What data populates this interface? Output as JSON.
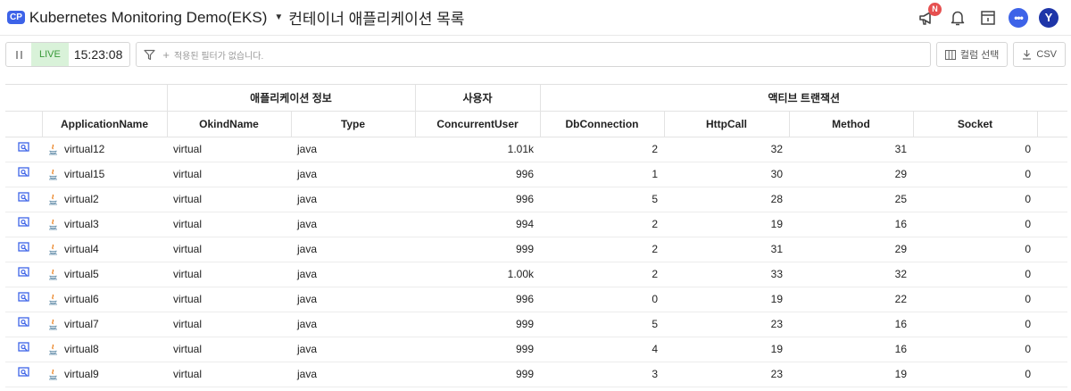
{
  "header": {
    "badge": "CP",
    "project": "Kubernetes Monitoring Demo(EKS)",
    "title": "컨테이너 애플리케이션 목록",
    "notification_badge": "N",
    "avatar_letter": "Y",
    "chat_glyph": "•••"
  },
  "toolbar": {
    "live_label": "LIVE",
    "time": "15:23:08",
    "filter_placeholder": "적용된 필터가 없습니다.",
    "column_select_label": "컬럼 선택",
    "csv_label": "CSV"
  },
  "table": {
    "groups": [
      "애플리케이션 정보",
      "사용자",
      "액티브 트랜잭션"
    ],
    "columns": [
      "ApplicationName",
      "OkindName",
      "Type",
      "ConcurrentUser",
      "DbConnection",
      "HttpCall",
      "Method",
      "Socket"
    ],
    "rows": [
      [
        "virtual12",
        "virtual",
        "java",
        "1.01k",
        "2",
        "32",
        "31",
        "0"
      ],
      [
        "virtual15",
        "virtual",
        "java",
        "996",
        "1",
        "30",
        "29",
        "0"
      ],
      [
        "virtual2",
        "virtual",
        "java",
        "996",
        "5",
        "28",
        "25",
        "0"
      ],
      [
        "virtual3",
        "virtual",
        "java",
        "994",
        "2",
        "19",
        "16",
        "0"
      ],
      [
        "virtual4",
        "virtual",
        "java",
        "999",
        "2",
        "31",
        "29",
        "0"
      ],
      [
        "virtual5",
        "virtual",
        "java",
        "1.00k",
        "2",
        "33",
        "32",
        "0"
      ],
      [
        "virtual6",
        "virtual",
        "java",
        "996",
        "0",
        "19",
        "22",
        "0"
      ],
      [
        "virtual7",
        "virtual",
        "java",
        "999",
        "5",
        "23",
        "16",
        "0"
      ],
      [
        "virtual8",
        "virtual",
        "java",
        "999",
        "4",
        "19",
        "16",
        "0"
      ],
      [
        "virtual9",
        "virtual",
        "java",
        "999",
        "3",
        "23",
        "19",
        "0"
      ]
    ]
  },
  "colors": {
    "accent": "#3d63e8",
    "live_bg": "#d9f2d9",
    "live_text": "#3a9a3a",
    "notification": "#e65050",
    "avatar": "#1e35a8"
  },
  "icons": [
    "megaphone-icon",
    "bell-icon",
    "panel-icon",
    "chat-icon",
    "pause-icon",
    "filter-icon",
    "columns-icon",
    "download-icon",
    "detail-icon",
    "java-icon"
  ]
}
